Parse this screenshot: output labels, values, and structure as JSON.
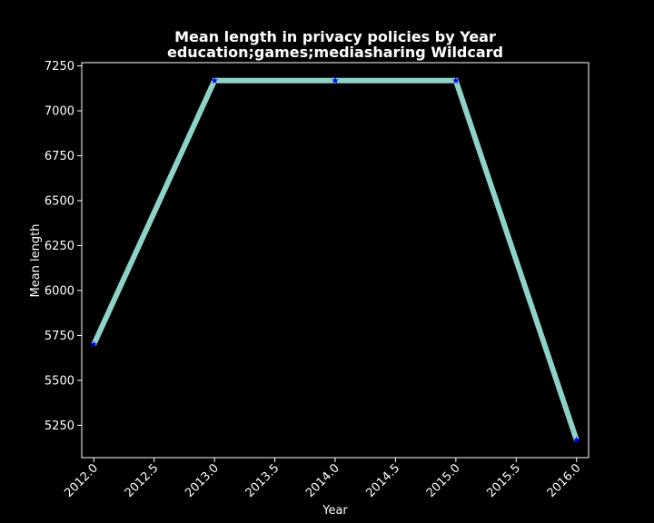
{
  "chart_data": {
    "type": "line",
    "title": "Mean length in privacy policies by Year",
    "subtitle": "education;games;mediasharing Wildcard",
    "xlabel": "Year",
    "ylabel": "Mean length",
    "x": [
      2012.0,
      2013.0,
      2014.0,
      2015.0,
      2016.0
    ],
    "series": [
      {
        "values": [
          5700,
          7168,
          7168,
          7168,
          5168
        ]
      }
    ],
    "xlim": [
      2011.9,
      2016.1
    ],
    "ylim": [
      5070,
      7268
    ],
    "x_ticks": [
      "2012.0",
      "2012.5",
      "2013.0",
      "2013.5",
      "2014.0",
      "2014.5",
      "2015.0",
      "2015.5",
      "2016.0"
    ],
    "y_ticks": [
      "5250",
      "5500",
      "5750",
      "6000",
      "6250",
      "6500",
      "6750",
      "7000",
      "7250"
    ],
    "grid": false,
    "legend": "none",
    "colors": {
      "background": "#000000",
      "axes": "#ffffff",
      "line": "#8dd3c7",
      "marker": "#0000ff",
      "text": "#ffffff"
    },
    "marker": "star"
  }
}
